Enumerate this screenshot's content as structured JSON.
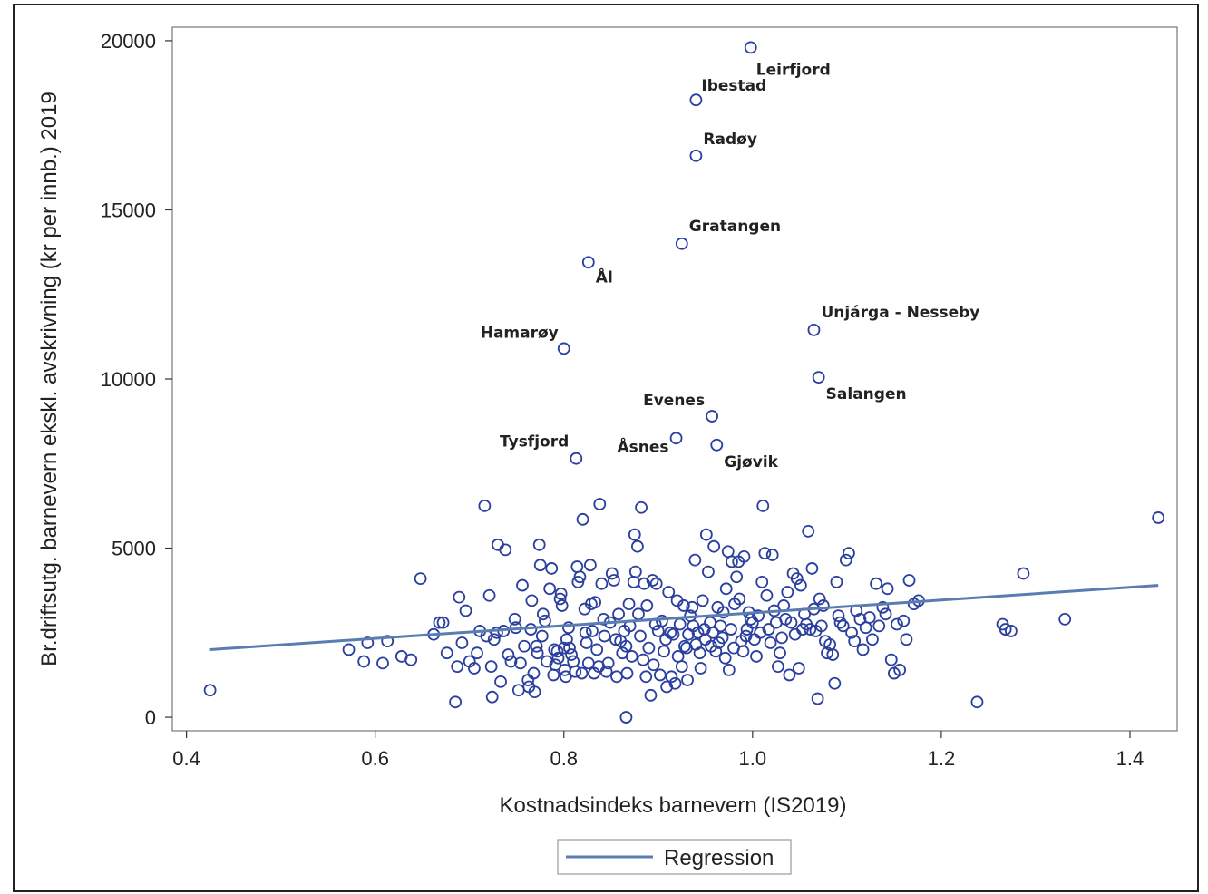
{
  "chart_data": {
    "type": "scatter",
    "title": "",
    "xlabel": "Kostnadsindeks barnevern (IS2019)",
    "ylabel": "Br.driftsutg. barnevern ekskl. avskrivning  (kr per innb.) 2019",
    "xlim": [
      0.385,
      1.45
    ],
    "ylim": [
      -400,
      20400
    ],
    "x_ticks": [
      0.4,
      0.6,
      0.8,
      1.0,
      1.2,
      1.4
    ],
    "x_tick_labels": [
      "0.4",
      "0.6",
      "0.8",
      "1.0",
      "1.2",
      "1.4"
    ],
    "y_ticks": [
      0,
      5000,
      10000,
      15000,
      20000
    ],
    "y_tick_labels": [
      "0",
      "5000",
      "10000",
      "15000",
      "20000"
    ],
    "grid": false,
    "marker_color": "#2a3f9e",
    "line_color": "#5a7cb0",
    "legend": {
      "placement": "bottom-center",
      "entries": [
        {
          "name": "Regression",
          "type": "line"
        }
      ]
    },
    "regression": {
      "name": "Regression",
      "x": [
        0.425,
        1.43
      ],
      "y": [
        2000,
        3900
      ]
    },
    "labeled_points": [
      {
        "x": 0.998,
        "y": 19800,
        "label": "Leirfjord"
      },
      {
        "x": 0.94,
        "y": 18250,
        "label": "Ibestad"
      },
      {
        "x": 0.94,
        "y": 16600,
        "label": "Radøy"
      },
      {
        "x": 0.925,
        "y": 14000,
        "label": "Gratangen"
      },
      {
        "x": 0.826,
        "y": 13450,
        "label": "Ål"
      },
      {
        "x": 1.065,
        "y": 11450,
        "label": "Unjárga - Nesseby"
      },
      {
        "x": 0.8,
        "y": 10900,
        "label": "Hamarøy"
      },
      {
        "x": 1.07,
        "y": 10050,
        "label": "Salangen"
      },
      {
        "x": 0.957,
        "y": 8900,
        "label": "Evenes"
      },
      {
        "x": 0.919,
        "y": 8250,
        "label": "Åsnes"
      },
      {
        "x": 0.962,
        "y": 8050,
        "label": "Gjøvik"
      },
      {
        "x": 0.813,
        "y": 7650,
        "label": "Tysfjord"
      }
    ],
    "points": [
      [
        0.425,
        800
      ],
      [
        0.572,
        2000
      ],
      [
        0.588,
        1650
      ],
      [
        0.592,
        2200
      ],
      [
        0.608,
        1600
      ],
      [
        0.613,
        2250
      ],
      [
        0.628,
        1800
      ],
      [
        0.638,
        1700
      ],
      [
        0.648,
        4100
      ],
      [
        0.662,
        2450
      ],
      [
        0.668,
        2800
      ],
      [
        0.672,
        2800
      ],
      [
        0.676,
        1900
      ],
      [
        0.685,
        450
      ],
      [
        0.687,
        1500
      ],
      [
        0.689,
        3550
      ],
      [
        0.692,
        2200
      ],
      [
        0.696,
        3150
      ],
      [
        0.7,
        1650
      ],
      [
        0.705,
        1450
      ],
      [
        0.708,
        1900
      ],
      [
        0.711,
        2550
      ],
      [
        0.716,
        6250
      ],
      [
        0.718,
        2400
      ],
      [
        0.721,
        3600
      ],
      [
        0.723,
        1500
      ],
      [
        0.724,
        600
      ],
      [
        0.726,
        2300
      ],
      [
        0.729,
        2500
      ],
      [
        0.73,
        5100
      ],
      [
        0.733,
        1050
      ],
      [
        0.736,
        2550
      ],
      [
        0.738,
        4950
      ],
      [
        0.741,
        1850
      ],
      [
        0.744,
        1650
      ],
      [
        0.748,
        2900
      ],
      [
        0.749,
        2650
      ],
      [
        0.752,
        800
      ],
      [
        0.754,
        1600
      ],
      [
        0.756,
        3900
      ],
      [
        0.758,
        2100
      ],
      [
        0.762,
        1100
      ],
      [
        0.763,
        900
      ],
      [
        0.765,
        2600
      ],
      [
        0.766,
        3450
      ],
      [
        0.768,
        1300
      ],
      [
        0.769,
        750
      ],
      [
        0.771,
        2100
      ],
      [
        0.772,
        1900
      ],
      [
        0.774,
        5100
      ],
      [
        0.775,
        4500
      ],
      [
        0.777,
        2400
      ],
      [
        0.778,
        3050
      ],
      [
        0.78,
        2850
      ],
      [
        0.782,
        1650
      ],
      [
        0.785,
        3800
      ],
      [
        0.787,
        4400
      ],
      [
        0.789,
        1250
      ],
      [
        0.79,
        2000
      ],
      [
        0.791,
        1550
      ],
      [
        0.793,
        1950
      ],
      [
        0.794,
        1750
      ],
      [
        0.796,
        3500
      ],
      [
        0.797,
        3650
      ],
      [
        0.798,
        3300
      ],
      [
        0.8,
        2050
      ],
      [
        0.801,
        1400
      ],
      [
        0.802,
        1200
      ],
      [
        0.803,
        2300
      ],
      [
        0.805,
        2650
      ],
      [
        0.806,
        2050
      ],
      [
        0.808,
        1850
      ],
      [
        0.81,
        1650
      ],
      [
        0.812,
        1350
      ],
      [
        0.814,
        4450
      ],
      [
        0.815,
        4000
      ],
      [
        0.817,
        4150
      ],
      [
        0.819,
        1300
      ],
      [
        0.82,
        5850
      ],
      [
        0.822,
        3200
      ],
      [
        0.823,
        2500
      ],
      [
        0.824,
        2200
      ],
      [
        0.826,
        1600
      ],
      [
        0.828,
        4500
      ],
      [
        0.829,
        3350
      ],
      [
        0.83,
        2550
      ],
      [
        0.832,
        1300
      ],
      [
        0.833,
        3400
      ],
      [
        0.835,
        2000
      ],
      [
        0.837,
        1500
      ],
      [
        0.838,
        6300
      ],
      [
        0.84,
        3950
      ],
      [
        0.842,
        2900
      ],
      [
        0.843,
        2400
      ],
      [
        0.845,
        1350
      ],
      [
        0.847,
        1600
      ],
      [
        0.849,
        2800
      ],
      [
        0.851,
        4250
      ],
      [
        0.853,
        4050
      ],
      [
        0.855,
        2300
      ],
      [
        0.856,
        1200
      ],
      [
        0.858,
        3050
      ],
      [
        0.86,
        2250
      ],
      [
        0.862,
        1900
      ],
      [
        0.864,
        2550
      ],
      [
        0.866,
        2100
      ],
      [
        0.867,
        1300
      ],
      [
        0.869,
        3350
      ],
      [
        0.87,
        2700
      ],
      [
        0.872,
        1800
      ],
      [
        0.874,
        4000
      ],
      [
        0.875,
        5400
      ],
      [
        0.876,
        4300
      ],
      [
        0.878,
        5050
      ],
      [
        0.879,
        3050
      ],
      [
        0.881,
        2400
      ],
      [
        0.882,
        6200
      ],
      [
        0.884,
        1700
      ],
      [
        0.885,
        3950
      ],
      [
        0.887,
        1200
      ],
      [
        0.888,
        3300
      ],
      [
        0.89,
        2050
      ],
      [
        0.892,
        650
      ],
      [
        0.894,
        4050
      ],
      [
        0.895,
        1550
      ],
      [
        0.897,
        2750
      ],
      [
        0.898,
        3950
      ],
      [
        0.9,
        2550
      ],
      [
        0.902,
        1250
      ],
      [
        0.904,
        2850
      ],
      [
        0.906,
        1950
      ],
      [
        0.908,
        2300
      ],
      [
        0.909,
        900
      ],
      [
        0.911,
        3700
      ],
      [
        0.913,
        2500
      ],
      [
        0.914,
        1200
      ],
      [
        0.916,
        2450
      ],
      [
        0.918,
        1000
      ],
      [
        0.92,
        3450
      ],
      [
        0.921,
        1800
      ],
      [
        0.923,
        2750
      ],
      [
        0.925,
        1500
      ],
      [
        0.927,
        3300
      ],
      [
        0.928,
        2100
      ],
      [
        0.93,
        2050
      ],
      [
        0.931,
        1100
      ],
      [
        0.932,
        2450
      ],
      [
        0.934,
        3000
      ],
      [
        0.936,
        3250
      ],
      [
        0.937,
        2700
      ],
      [
        0.939,
        4650
      ],
      [
        0.94,
        2150
      ],
      [
        0.942,
        2500
      ],
      [
        0.944,
        1900
      ],
      [
        0.945,
        1450
      ],
      [
        0.947,
        3450
      ],
      [
        0.949,
        2600
      ],
      [
        0.95,
        2300
      ],
      [
        0.951,
        5400
      ],
      [
        0.953,
        4300
      ],
      [
        0.955,
        2800
      ],
      [
        0.956,
        2100
      ],
      [
        0.958,
        2500
      ],
      [
        0.959,
        5050
      ],
      [
        0.961,
        1950
      ],
      [
        0.963,
        3250
      ],
      [
        0.964,
        2200
      ],
      [
        0.966,
        2700
      ],
      [
        0.968,
        2350
      ],
      [
        0.969,
        3100
      ],
      [
        0.971,
        1750
      ],
      [
        0.972,
        3800
      ],
      [
        0.974,
        4900
      ],
      [
        0.975,
        1400
      ],
      [
        0.977,
        2600
      ],
      [
        0.978,
        4600
      ],
      [
        0.98,
        2050
      ],
      [
        0.981,
        3350
      ],
      [
        0.983,
        4150
      ],
      [
        0.985,
        4600
      ],
      [
        0.986,
        3500
      ],
      [
        0.988,
        2250
      ],
      [
        0.99,
        1950
      ],
      [
        0.991,
        4750
      ],
      [
        0.993,
        2400
      ],
      [
        0.994,
        2600
      ],
      [
        0.996,
        3100
      ],
      [
        0.998,
        2900
      ],
      [
        1.0,
        2800
      ],
      [
        1.002,
        2300
      ],
      [
        1.004,
        1800
      ],
      [
        1.006,
        3000
      ],
      [
        1.008,
        2500
      ],
      [
        1.01,
        4000
      ],
      [
        1.011,
        6250
      ],
      [
        1.013,
        4850
      ],
      [
        1.015,
        3600
      ],
      [
        1.017,
        2600
      ],
      [
        1.019,
        2200
      ],
      [
        1.021,
        4800
      ],
      [
        1.023,
        3150
      ],
      [
        1.025,
        2800
      ],
      [
        1.027,
        1500
      ],
      [
        1.029,
        1900
      ],
      [
        1.031,
        2350
      ],
      [
        1.033,
        3300
      ],
      [
        1.035,
        2900
      ],
      [
        1.037,
        3700
      ],
      [
        1.039,
        1250
      ],
      [
        1.041,
        2800
      ],
      [
        1.043,
        4250
      ],
      [
        1.045,
        2450
      ],
      [
        1.047,
        4100
      ],
      [
        1.049,
        1450
      ],
      [
        1.051,
        3900
      ],
      [
        1.053,
        2600
      ],
      [
        1.055,
        3050
      ],
      [
        1.057,
        2750
      ],
      [
        1.059,
        5500
      ],
      [
        1.061,
        2600
      ],
      [
        1.063,
        4400
      ],
      [
        1.065,
        3200
      ],
      [
        1.067,
        2550
      ],
      [
        1.069,
        550
      ],
      [
        1.071,
        3500
      ],
      [
        1.073,
        2700
      ],
      [
        1.075,
        3300
      ],
      [
        1.077,
        2250
      ],
      [
        1.079,
        1900
      ],
      [
        1.082,
        2150
      ],
      [
        1.085,
        1850
      ],
      [
        1.087,
        1000
      ],
      [
        1.089,
        4000
      ],
      [
        1.091,
        3000
      ],
      [
        1.093,
        2800
      ],
      [
        1.096,
        2700
      ],
      [
        1.099,
        4650
      ],
      [
        1.102,
        4850
      ],
      [
        1.105,
        2500
      ],
      [
        1.108,
        2250
      ],
      [
        1.11,
        3150
      ],
      [
        1.114,
        2900
      ],
      [
        1.117,
        2000
      ],
      [
        1.12,
        2650
      ],
      [
        1.124,
        2950
      ],
      [
        1.127,
        2300
      ],
      [
        1.131,
        3950
      ],
      [
        1.134,
        2700
      ],
      [
        1.138,
        3250
      ],
      [
        1.141,
        3050
      ],
      [
        1.143,
        3800
      ],
      [
        1.147,
        1700
      ],
      [
        1.15,
        1300
      ],
      [
        1.153,
        2750
      ],
      [
        1.156,
        1400
      ],
      [
        1.16,
        2850
      ],
      [
        1.163,
        2300
      ],
      [
        1.166,
        4050
      ],
      [
        1.171,
        3350
      ],
      [
        1.176,
        3450
      ],
      [
        1.238,
        450
      ],
      [
        1.265,
        2750
      ],
      [
        1.268,
        2600
      ],
      [
        1.274,
        2550
      ],
      [
        1.287,
        4250
      ],
      [
        1.331,
        2900
      ],
      [
        1.43,
        5900
      ],
      [
        0.866,
        0
      ]
    ]
  }
}
